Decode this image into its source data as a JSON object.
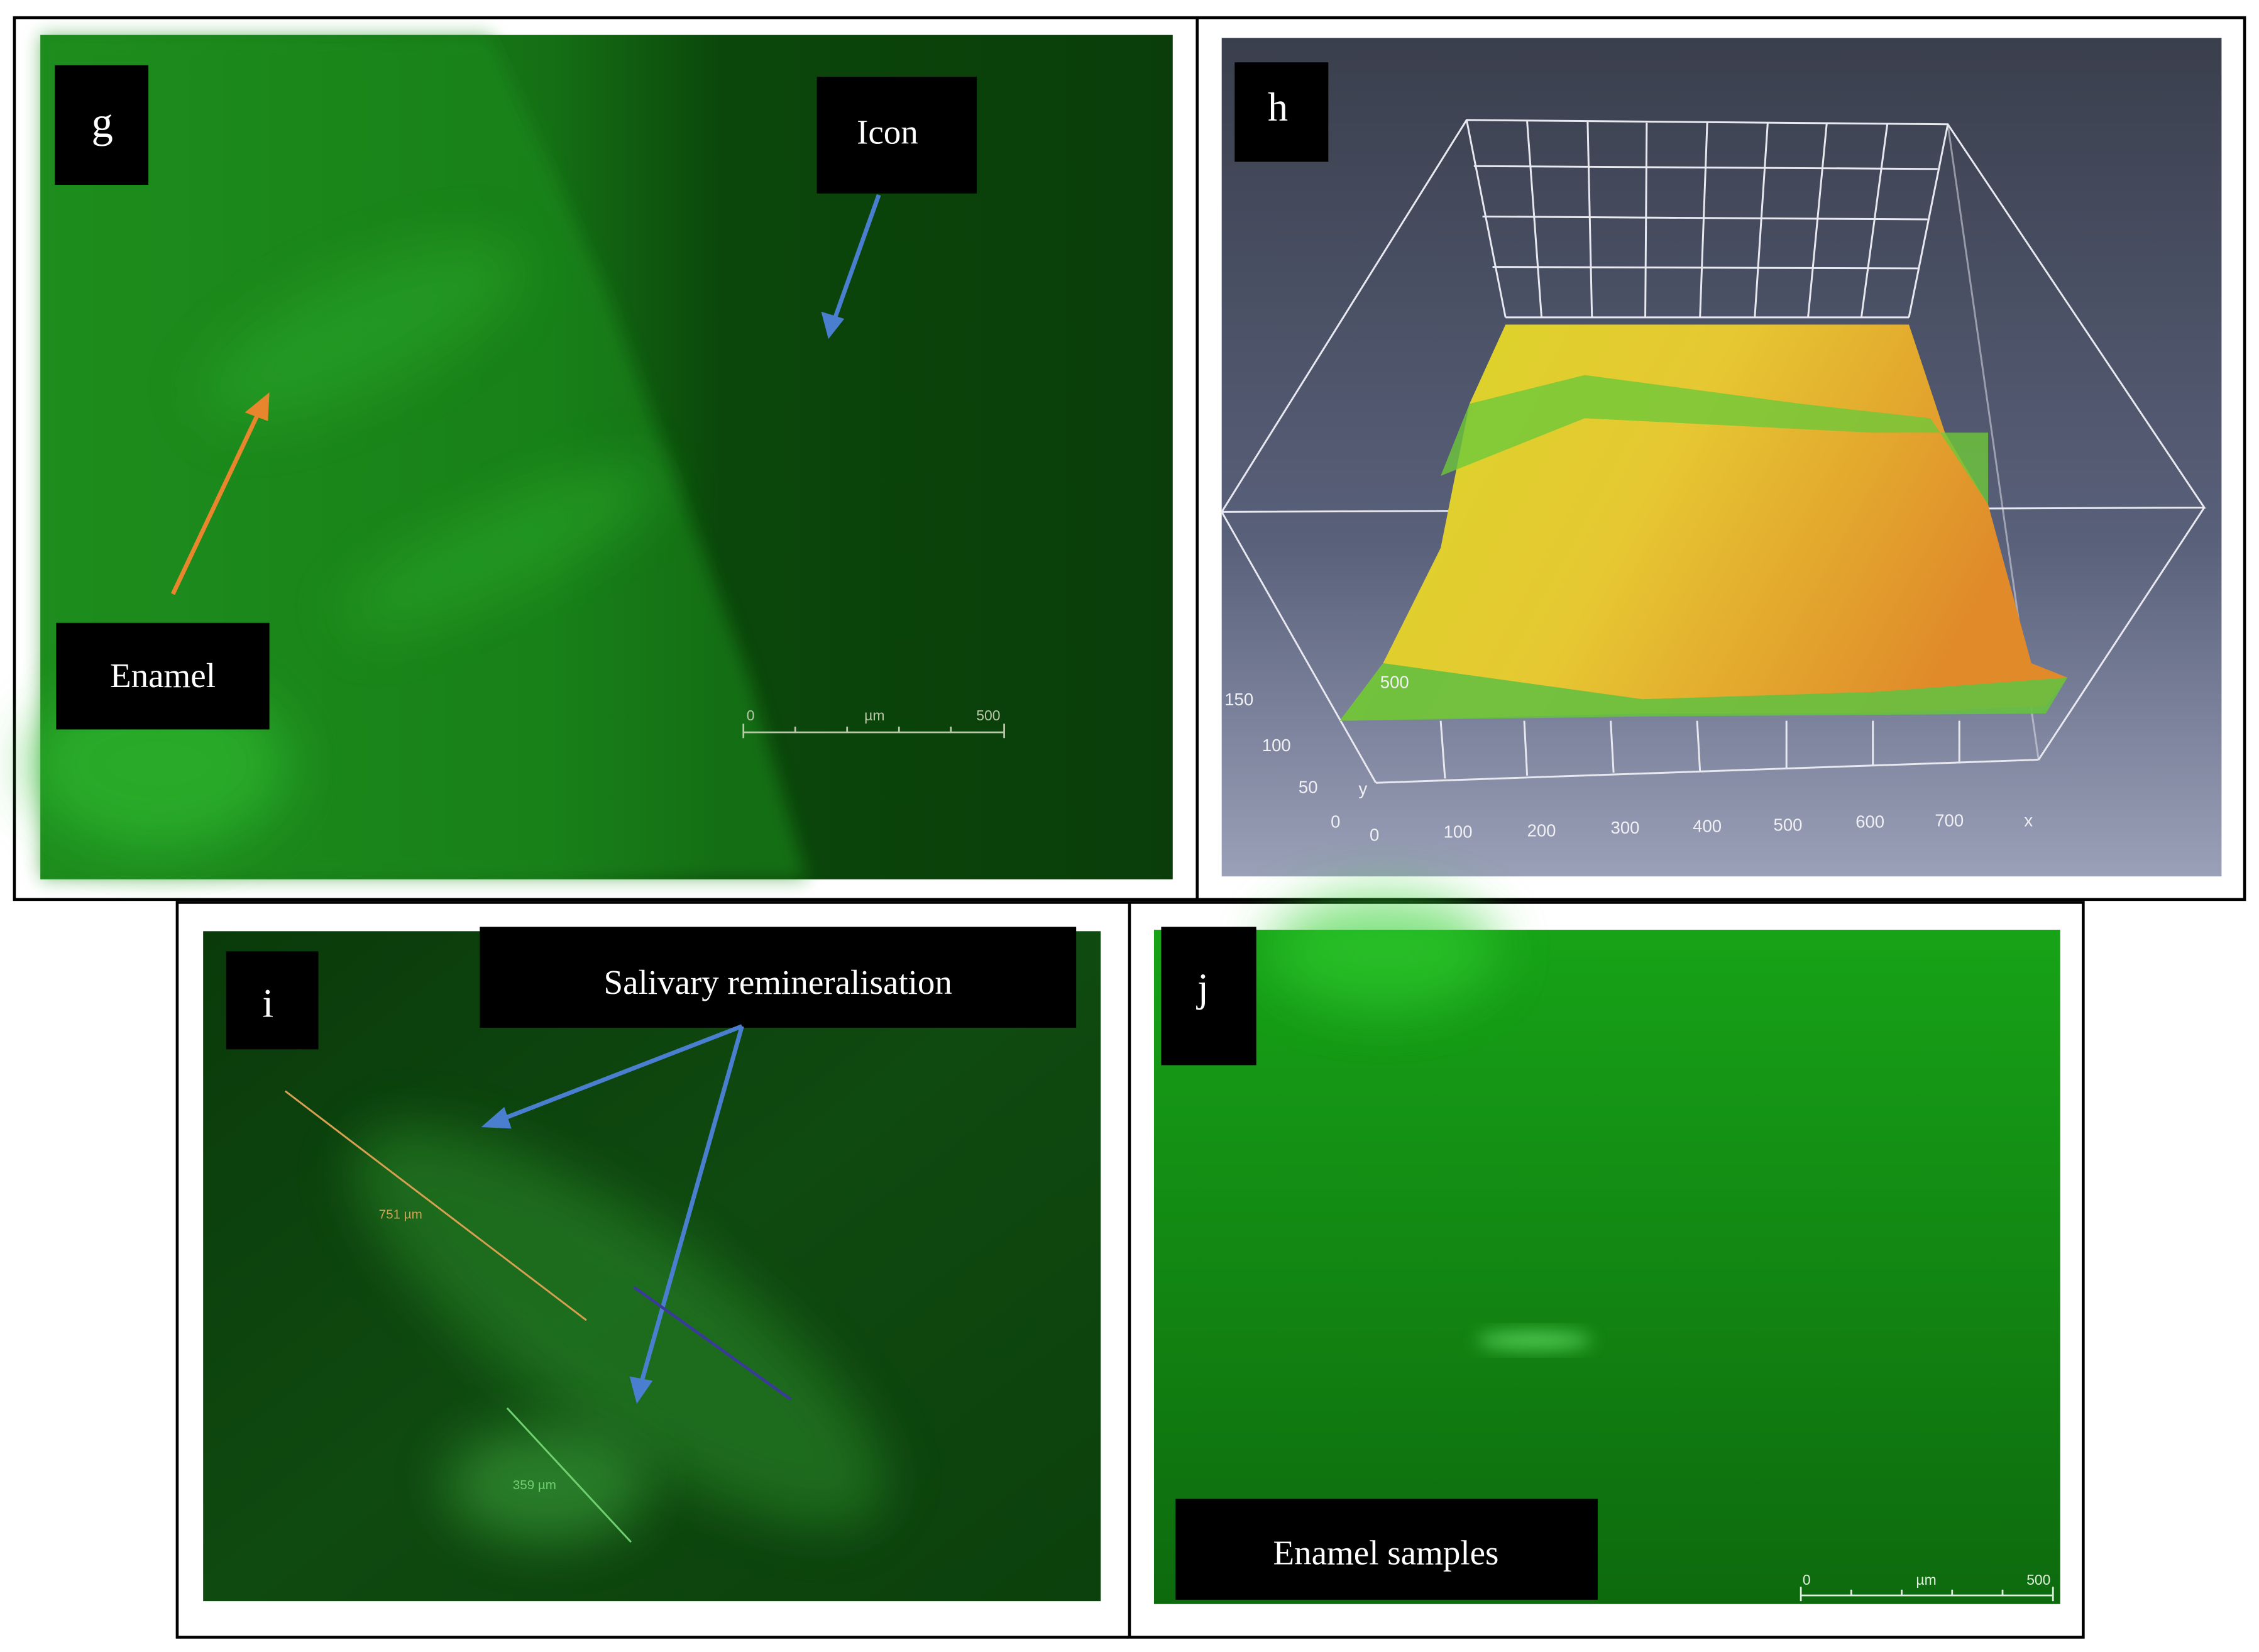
{
  "panels": [
    {
      "label": "g",
      "annotations": [
        "Icon",
        "Enamel"
      ],
      "scale_bar": [
        "0",
        "µm",
        "500"
      ]
    },
    {
      "label": "h",
      "plot": {
        "z_labels": [
          "150",
          "100",
          "50",
          "0"
        ],
        "y_label": "y",
        "y_ticks": [
          "500"
        ],
        "x_labels": [
          "0",
          "100",
          "200",
          "300",
          "400",
          "500",
          "600",
          "700"
        ],
        "x_label": "x"
      }
    },
    {
      "label": "i",
      "annotations": [
        "Salivary remineralisation"
      ],
      "measurements": [
        "751 µm",
        "359 µm"
      ]
    },
    {
      "label": "j",
      "annotations": [
        "Enamel samples"
      ],
      "scale_bar": [
        "0",
        "µm",
        "500"
      ]
    }
  ]
}
